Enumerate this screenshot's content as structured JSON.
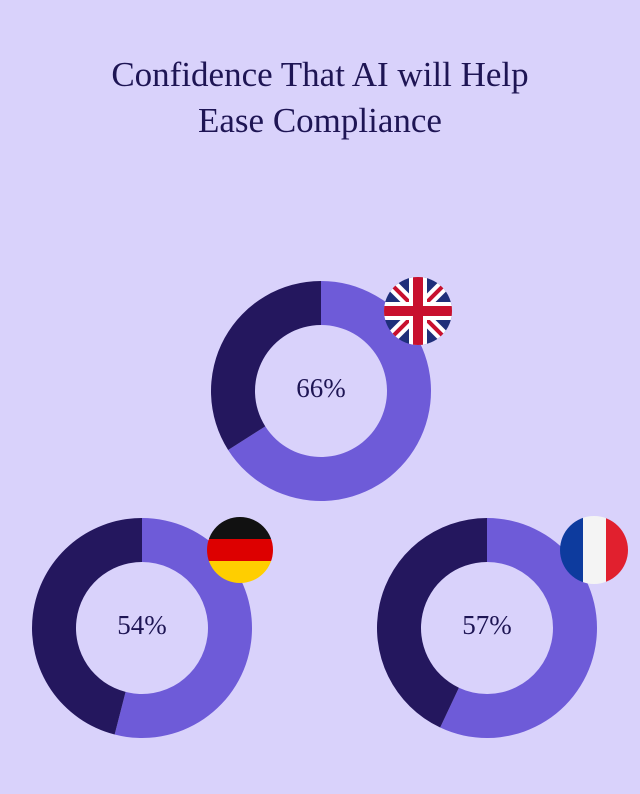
{
  "title": "Confidence That AI will Help Ease Compliance",
  "chart_data": [
    {
      "type": "donut",
      "values": [
        66,
        34
      ],
      "value_labels": [
        "66%",
        null
      ],
      "colors": [
        "#6e5bd8",
        "#24175e"
      ]
    },
    {
      "type": "donut",
      "values": [
        54,
        46
      ],
      "value_labels": [
        "54%",
        null
      ],
      "colors": [
        "#6e5bd8",
        "#24175e"
      ]
    },
    {
      "type": "donut",
      "values": [
        57,
        43
      ],
      "value_labels": [
        "57%",
        null
      ],
      "colors": [
        "#6e5bd8",
        "#24175e"
      ]
    }
  ]
}
